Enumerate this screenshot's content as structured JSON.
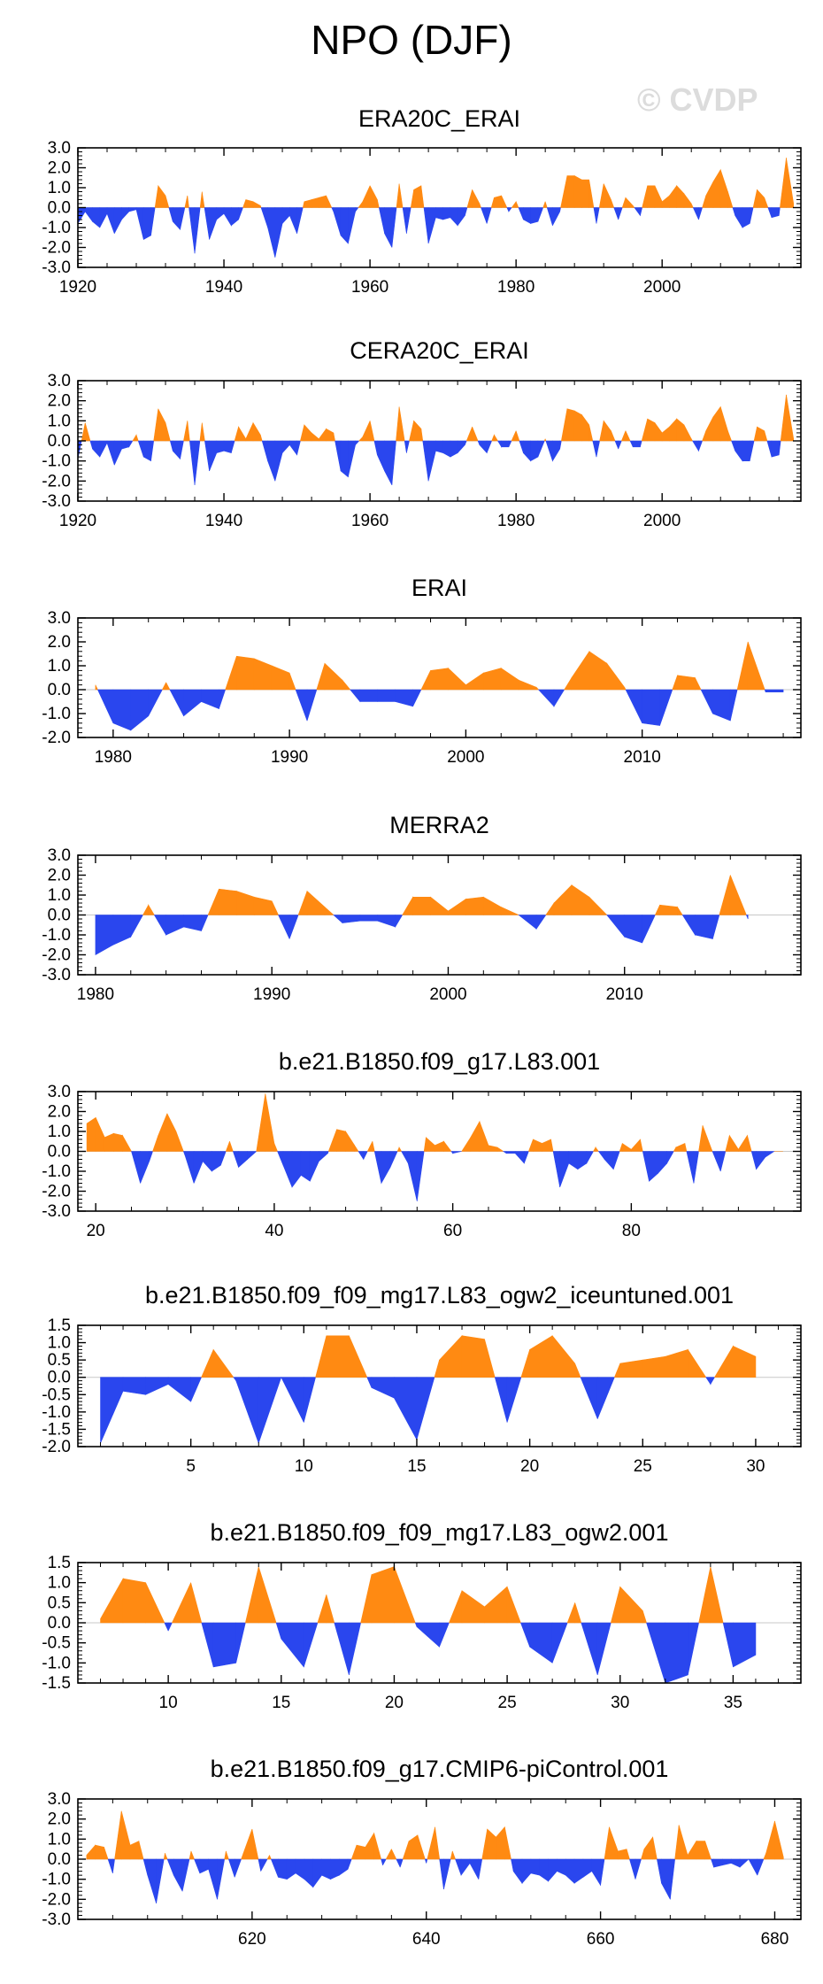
{
  "page": {
    "title": "NPO (DJF)",
    "watermark": "© CVDP"
  },
  "colors": {
    "positive": "#ff8a12",
    "negative": "#2a46ee",
    "frame": "#000000"
  },
  "chart_data": [
    {
      "type": "area",
      "title": "ERA20C_ERAI",
      "xlim": [
        1920,
        2019
      ],
      "ylim": [
        -3.0,
        3.0
      ],
      "yticks": [
        "3.0",
        "2.0",
        "1.0",
        "0.0",
        "-1.0",
        "-2.0",
        "-3.0"
      ],
      "xticks": [
        1920,
        1940,
        1960,
        1980,
        2000
      ],
      "x": [
        1920,
        1921,
        1922,
        1923,
        1924,
        1925,
        1926,
        1927,
        1928,
        1929,
        1930,
        1931,
        1932,
        1933,
        1934,
        1935,
        1936,
        1937,
        1938,
        1939,
        1940,
        1941,
        1942,
        1943,
        1944,
        1945,
        1946,
        1947,
        1948,
        1949,
        1950,
        1951,
        1952,
        1953,
        1954,
        1955,
        1956,
        1957,
        1958,
        1959,
        1960,
        1961,
        1962,
        1963,
        1964,
        1965,
        1966,
        1967,
        1968,
        1969,
        1970,
        1971,
        1972,
        1973,
        1974,
        1975,
        1976,
        1977,
        1978,
        1979,
        1980,
        1981,
        1982,
        1983,
        1984,
        1985,
        1986,
        1987,
        1988,
        1989,
        1990,
        1991,
        1992,
        1993,
        1994,
        1995,
        1996,
        1997,
        1998,
        1999,
        2000,
        2001,
        2002,
        2003,
        2004,
        2005,
        2006,
        2007,
        2008,
        2009,
        2010,
        2011,
        2012,
        2013,
        2014,
        2015,
        2016,
        2017,
        2018
      ],
      "values": [
        -0.8,
        -0.2,
        -0.7,
        -1.0,
        -0.3,
        -1.3,
        -0.6,
        -0.2,
        -0.1,
        -1.6,
        -1.4,
        1.1,
        0.6,
        -0.7,
        -1.1,
        0.6,
        -2.3,
        0.8,
        -1.6,
        -0.6,
        -0.3,
        -0.9,
        -0.6,
        0.4,
        0.3,
        0.1,
        -1.0,
        -2.5,
        -0.8,
        -0.4,
        -1.3,
        0.3,
        0.4,
        0.5,
        0.6,
        -0.2,
        -1.4,
        -1.8,
        -0.2,
        0.3,
        1.1,
        0.4,
        -1.3,
        -2.0,
        1.2,
        -1.3,
        0.9,
        1.1,
        -1.8,
        -0.5,
        -0.6,
        -0.5,
        -0.9,
        -0.4,
        0.9,
        0.2,
        -0.8,
        0.5,
        0.6,
        -0.2,
        0.3,
        -0.6,
        -0.8,
        -0.7,
        0.3,
        -0.9,
        -0.2,
        1.6,
        1.6,
        1.4,
        1.4,
        -0.8,
        1.2,
        0.4,
        -0.6,
        0.5,
        0.1,
        -0.4,
        1.1,
        1.1,
        0.3,
        0.6,
        1.1,
        0.7,
        0.2,
        -0.6,
        0.6,
        1.3,
        1.9,
        0.8,
        -0.4,
        -1.0,
        -0.8,
        0.9,
        0.5,
        -0.5,
        -0.4,
        2.5,
        0.2
      ]
    },
    {
      "type": "area",
      "title": "CERA20C_ERAI",
      "xlim": [
        1920,
        2019
      ],
      "ylim": [
        -3.0,
        3.0
      ],
      "yticks": [
        "3.0",
        "2.0",
        "1.0",
        "0.0",
        "-1.0",
        "-2.0",
        "-3.0"
      ],
      "xticks": [
        1920,
        1940,
        1960,
        1980,
        2000
      ],
      "x": [
        1920,
        1921,
        1922,
        1923,
        1924,
        1925,
        1926,
        1927,
        1928,
        1929,
        1930,
        1931,
        1932,
        1933,
        1934,
        1935,
        1936,
        1937,
        1938,
        1939,
        1940,
        1941,
        1942,
        1943,
        1944,
        1945,
        1946,
        1947,
        1948,
        1949,
        1950,
        1951,
        1952,
        1953,
        1954,
        1955,
        1956,
        1957,
        1958,
        1959,
        1960,
        1961,
        1962,
        1963,
        1964,
        1965,
        1966,
        1967,
        1968,
        1969,
        1970,
        1971,
        1972,
        1973,
        1974,
        1975,
        1976,
        1977,
        1978,
        1979,
        1980,
        1981,
        1982,
        1983,
        1984,
        1985,
        1986,
        1987,
        1988,
        1989,
        1990,
        1991,
        1992,
        1993,
        1994,
        1995,
        1996,
        1997,
        1998,
        1999,
        2000,
        2001,
        2002,
        2003,
        2004,
        2005,
        2006,
        2007,
        2008,
        2009,
        2010,
        2011,
        2012,
        2013,
        2014,
        2015,
        2016,
        2017,
        2018
      ],
      "values": [
        -0.9,
        0.9,
        -0.4,
        -0.8,
        -0.1,
        -1.2,
        -0.4,
        -0.3,
        0.3,
        -0.8,
        -1.0,
        1.6,
        0.9,
        -0.5,
        -0.9,
        1.0,
        -2.2,
        0.9,
        -1.5,
        -0.6,
        -0.5,
        -0.6,
        0.7,
        0.1,
        0.9,
        0.3,
        -1.0,
        -2.0,
        -0.6,
        -0.2,
        -0.7,
        0.8,
        0.4,
        0.1,
        0.6,
        0.4,
        -1.5,
        -1.8,
        -0.2,
        0.2,
        1.0,
        -0.7,
        -1.5,
        -2.2,
        1.7,
        -0.6,
        1.0,
        0.6,
        -2.0,
        -0.5,
        -0.6,
        -0.8,
        -0.6,
        -0.2,
        0.7,
        -0.2,
        -0.6,
        0.3,
        -0.3,
        -0.3,
        0.5,
        -0.6,
        -1.0,
        -0.8,
        0.1,
        -1.0,
        -0.4,
        1.6,
        1.5,
        1.3,
        0.8,
        -0.8,
        1.0,
        0.5,
        -0.4,
        0.5,
        -0.3,
        -0.3,
        1.1,
        0.9,
        0.4,
        0.7,
        1.1,
        0.8,
        0.1,
        -0.5,
        0.5,
        1.2,
        1.7,
        0.5,
        -0.5,
        -1.0,
        -1.0,
        0.7,
        0.5,
        -0.8,
        -0.7,
        2.3,
        0.1
      ]
    },
    {
      "type": "area",
      "title": "ERAI",
      "xlim": [
        1978,
        2019
      ],
      "ylim": [
        -2.0,
        3.0
      ],
      "yticks": [
        "3.0",
        "2.0",
        "1.0",
        "0.0",
        "-1.0",
        "-2.0"
      ],
      "xticks": [
        1980,
        1990,
        2000,
        2010
      ],
      "x": [
        1979,
        1980,
        1981,
        1982,
        1983,
        1984,
        1985,
        1986,
        1987,
        1988,
        1989,
        1990,
        1991,
        1992,
        1993,
        1994,
        1995,
        1996,
        1997,
        1998,
        1999,
        2000,
        2001,
        2002,
        2003,
        2004,
        2005,
        2006,
        2007,
        2008,
        2009,
        2010,
        2011,
        2012,
        2013,
        2014,
        2015,
        2016,
        2017,
        2018
      ],
      "values": [
        0.2,
        -1.4,
        -1.7,
        -1.1,
        0.3,
        -1.1,
        -0.5,
        -0.8,
        1.4,
        1.3,
        1.0,
        0.7,
        -1.3,
        1.1,
        0.4,
        -0.5,
        -0.5,
        -0.5,
        -0.7,
        0.8,
        0.9,
        0.2,
        0.7,
        0.9,
        0.4,
        0.1,
        -0.7,
        0.5,
        1.6,
        1.1,
        0.1,
        -1.4,
        -1.5,
        0.6,
        0.5,
        -1.0,
        -1.3,
        2.0,
        -0.1,
        -0.1
      ]
    },
    {
      "type": "area",
      "title": "MERRA2",
      "xlim": [
        1979,
        2020
      ],
      "ylim": [
        -3.0,
        3.0
      ],
      "yticks": [
        "3.0",
        "2.0",
        "1.0",
        "0.0",
        "-1.0",
        "-2.0",
        "-3.0"
      ],
      "xticks": [
        1980,
        1990,
        2000,
        2010
      ],
      "x": [
        1980,
        1981,
        1982,
        1983,
        1984,
        1985,
        1986,
        1987,
        1988,
        1989,
        1990,
        1991,
        1992,
        1993,
        1994,
        1995,
        1996,
        1997,
        1998,
        1999,
        2000,
        2001,
        2002,
        2003,
        2004,
        2005,
        2006,
        2007,
        2008,
        2009,
        2010,
        2011,
        2012,
        2013,
        2014,
        2015,
        2016,
        2017
      ],
      "values": [
        -2.0,
        -1.5,
        -1.1,
        0.5,
        -1.0,
        -0.6,
        -0.8,
        1.3,
        1.2,
        0.9,
        0.7,
        -1.2,
        1.2,
        0.4,
        -0.4,
        -0.3,
        -0.3,
        -0.6,
        0.9,
        0.9,
        0.2,
        0.8,
        0.9,
        0.4,
        0.0,
        -0.7,
        0.6,
        1.5,
        0.9,
        0.0,
        -1.1,
        -1.4,
        0.5,
        0.4,
        -1.0,
        -1.2,
        2.0,
        -0.2
      ]
    },
    {
      "type": "area",
      "title": "b.e21.B1850.f09_g17.L83.001",
      "xlim": [
        18,
        99
      ],
      "ylim": [
        -3.0,
        3.0
      ],
      "yticks": [
        "3.0",
        "2.0",
        "1.0",
        "0.0",
        "-1.0",
        "-2.0",
        "-3.0"
      ],
      "xticks": [
        20,
        40,
        60,
        80
      ],
      "x": [
        19,
        20,
        21,
        22,
        23,
        24,
        25,
        26,
        27,
        28,
        29,
        30,
        31,
        32,
        33,
        34,
        35,
        36,
        37,
        38,
        39,
        40,
        41,
        42,
        43,
        44,
        45,
        46,
        47,
        48,
        49,
        50,
        51,
        52,
        53,
        54,
        55,
        56,
        57,
        58,
        59,
        60,
        61,
        62,
        63,
        64,
        65,
        66,
        67,
        68,
        69,
        70,
        71,
        72,
        73,
        74,
        75,
        76,
        77,
        78,
        79,
        80,
        81,
        82,
        83,
        84,
        85,
        86,
        87,
        88,
        89,
        90,
        91,
        92,
        93,
        94,
        95,
        96,
        97
      ],
      "values": [
        1.4,
        1.7,
        0.7,
        0.9,
        0.8,
        0.0,
        -1.6,
        -0.5,
        0.8,
        1.9,
        1.0,
        -0.2,
        -1.6,
        -0.5,
        -1.0,
        -0.7,
        0.5,
        -0.8,
        -0.4,
        0.0,
        2.9,
        0.4,
        -0.7,
        -1.8,
        -1.2,
        -1.5,
        -0.5,
        -0.1,
        1.1,
        1.0,
        0.3,
        -0.4,
        0.5,
        -1.6,
        -0.8,
        0.2,
        -0.6,
        -2.5,
        0.7,
        0.3,
        0.5,
        -0.1,
        0.0,
        0.7,
        1.5,
        0.3,
        0.2,
        -0.1,
        -0.1,
        -0.6,
        0.6,
        0.4,
        0.6,
        -1.8,
        -0.6,
        -0.9,
        -0.6,
        0.2,
        -0.4,
        -0.9,
        0.4,
        0.1,
        0.6,
        -1.5,
        -1.1,
        -0.6,
        0.2,
        0.4,
        -1.6,
        1.3,
        0.1,
        -1.0,
        0.8,
        0.1,
        0.8,
        -0.9,
        -0.3,
        0.0,
        0.0
      ]
    },
    {
      "type": "area",
      "title": "b.e21.B1850.f09_f09_mg17.L83_ogw2_iceuntuned.001",
      "xlim": [
        0,
        32
      ],
      "ylim": [
        -2.0,
        1.5
      ],
      "yticks": [
        "1.5",
        "1.0",
        "0.5",
        "0.0",
        "-0.5",
        "-1.0",
        "-1.5",
        "-2.0"
      ],
      "xticks": [
        5,
        10,
        15,
        20,
        25,
        30
      ],
      "x": [
        1,
        2,
        3,
        4,
        5,
        6,
        7,
        8,
        9,
        10,
        11,
        12,
        13,
        14,
        15,
        16,
        17,
        18,
        19,
        20,
        21,
        22,
        23,
        24,
        25,
        26,
        27,
        28,
        29,
        30
      ],
      "values": [
        -1.9,
        -0.4,
        -0.5,
        -0.2,
        -0.7,
        0.8,
        -0.1,
        -1.9,
        0.0,
        -1.3,
        1.2,
        1.2,
        -0.3,
        -0.6,
        -1.8,
        0.5,
        1.2,
        1.1,
        -1.3,
        0.8,
        1.2,
        0.4,
        -1.2,
        0.4,
        0.5,
        0.6,
        0.8,
        -0.2,
        0.9,
        0.6
      ]
    },
    {
      "type": "area",
      "title": "b.e21.B1850.f09_f09_mg17.L83_ogw2.001",
      "xlim": [
        6,
        38
      ],
      "ylim": [
        -1.5,
        1.5
      ],
      "yticks": [
        "1.5",
        "1.0",
        "0.5",
        "0.0",
        "-0.5",
        "-1.0",
        "-1.5"
      ],
      "xticks": [
        10,
        15,
        20,
        25,
        30,
        35
      ],
      "x": [
        7,
        8,
        9,
        10,
        11,
        12,
        13,
        14,
        15,
        16,
        17,
        18,
        19,
        20,
        21,
        22,
        23,
        24,
        25,
        26,
        27,
        28,
        29,
        30,
        31,
        32,
        33,
        34,
        35,
        36
      ],
      "values": [
        0.1,
        1.1,
        1.0,
        -0.2,
        1.0,
        -1.1,
        -1.0,
        1.4,
        -0.4,
        -1.1,
        0.7,
        -1.3,
        1.2,
        1.4,
        -0.1,
        -0.6,
        0.8,
        0.4,
        0.9,
        -0.6,
        -1.0,
        0.5,
        -1.3,
        0.9,
        0.3,
        -1.5,
        -1.3,
        1.4,
        -1.1,
        -0.8
      ]
    },
    {
      "type": "area",
      "title": "b.e21.B1850.f09_g17.CMIP6-piControl.001",
      "xlim": [
        600,
        683
      ],
      "ylim": [
        -3.0,
        3.0
      ],
      "yticks": [
        "3.0",
        "2.0",
        "1.0",
        "0.0",
        "-1.0",
        "-2.0",
        "-3.0"
      ],
      "xticks": [
        620,
        640,
        660,
        680
      ],
      "x": [
        601,
        602,
        603,
        604,
        605,
        606,
        607,
        608,
        609,
        610,
        611,
        612,
        613,
        614,
        615,
        616,
        617,
        618,
        619,
        620,
        621,
        622,
        623,
        624,
        625,
        626,
        627,
        628,
        629,
        630,
        631,
        632,
        633,
        634,
        635,
        636,
        637,
        638,
        639,
        640,
        641,
        642,
        643,
        644,
        645,
        646,
        647,
        648,
        649,
        650,
        651,
        652,
        653,
        654,
        655,
        656,
        657,
        658,
        659,
        660,
        661,
        662,
        663,
        664,
        665,
        666,
        667,
        668,
        669,
        670,
        671,
        672,
        673,
        674,
        675,
        676,
        677,
        678,
        679,
        680,
        681
      ],
      "values": [
        0.2,
        0.7,
        0.6,
        -0.7,
        2.4,
        0.7,
        0.9,
        -0.8,
        -2.2,
        0.3,
        -0.8,
        -1.6,
        0.4,
        -0.7,
        -0.5,
        -2.0,
        0.4,
        -0.9,
        0.3,
        1.5,
        -0.6,
        0.2,
        -0.9,
        -1.0,
        -0.7,
        -1.0,
        -1.4,
        -0.8,
        -1.0,
        -0.8,
        -0.5,
        0.7,
        0.6,
        1.3,
        -0.3,
        0.5,
        -0.4,
        0.9,
        1.2,
        -0.2,
        1.6,
        -1.5,
        0.4,
        -0.8,
        -0.2,
        -1.0,
        1.5,
        1.1,
        1.6,
        -0.6,
        -1.2,
        -0.7,
        -0.8,
        -1.1,
        -0.6,
        -0.8,
        -1.2,
        -0.9,
        -0.6,
        -1.3,
        1.6,
        0.4,
        0.5,
        -1.0,
        0.5,
        1.1,
        -1.2,
        -2.0,
        1.7,
        0.2,
        0.9,
        0.9,
        -0.4,
        -0.3,
        -0.2,
        -0.4,
        0.0,
        -0.8,
        0.3,
        1.9,
        0.1
      ]
    }
  ]
}
